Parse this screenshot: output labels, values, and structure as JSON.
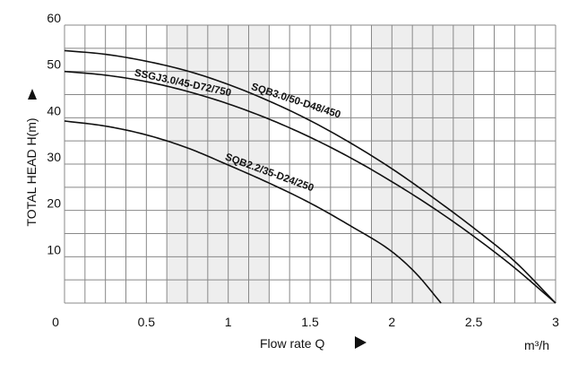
{
  "chart_data": {
    "type": "line",
    "title": "",
    "xlabel": "Flow rate Q",
    "xunit": "m³/h",
    "ylabel": "TOTAL HEAD H(m)",
    "xlim": [
      0,
      3
    ],
    "ylim": [
      0,
      60
    ],
    "x_ticks": [
      {
        "value": 0,
        "label": "0"
      },
      {
        "value": 0.5,
        "label": "0.5"
      },
      {
        "value": 1,
        "label": "1"
      },
      {
        "value": 1.5,
        "label": "1.5"
      },
      {
        "value": 2,
        "label": "2"
      },
      {
        "value": 2.5,
        "label": "2.5"
      },
      {
        "value": 3,
        "label": "3"
      }
    ],
    "y_ticks": [
      {
        "value": 10,
        "label": "10"
      },
      {
        "value": 20,
        "label": "20"
      },
      {
        "value": 30,
        "label": "30"
      },
      {
        "value": 40,
        "label": "40"
      },
      {
        "value": 50,
        "label": "50"
      },
      {
        "value": 60,
        "label": "60"
      }
    ],
    "grid": true,
    "grid_step_x": 0.125,
    "grid_step_y": 5,
    "shaded_ranges": [
      {
        "x_from": 0.625,
        "x_to": 1.25
      },
      {
        "x_from": 1.875,
        "x_to": 2.5
      }
    ],
    "colors": {
      "line": "#111111",
      "grid": "#888888",
      "shade": "#eeeeee",
      "background": "#ffffff"
    },
    "series": [
      {
        "name": "SQB3.0/50-D48/450",
        "label_at": 1.13,
        "label_angle": 18,
        "points": [
          [
            0,
            54.5
          ],
          [
            0.25,
            53.7
          ],
          [
            0.5,
            52.2
          ],
          [
            0.75,
            50.1
          ],
          [
            1.0,
            47.2
          ],
          [
            1.25,
            43.6
          ],
          [
            1.5,
            39.4
          ],
          [
            1.75,
            34.5
          ],
          [
            2.0,
            29.0
          ],
          [
            2.25,
            22.8
          ],
          [
            2.5,
            16.2
          ],
          [
            2.75,
            9.0
          ],
          [
            3.0,
            0
          ]
        ]
      },
      {
        "name": "SSGJ3.0/45-D72/750",
        "label_at": 0.42,
        "label_angle": 12,
        "points": [
          [
            0,
            50.0
          ],
          [
            0.25,
            49.2
          ],
          [
            0.5,
            47.8
          ],
          [
            0.75,
            45.7
          ],
          [
            1.0,
            43.0
          ],
          [
            1.25,
            39.7
          ],
          [
            1.5,
            35.8
          ],
          [
            1.75,
            31.3
          ],
          [
            2.0,
            26.2
          ],
          [
            2.25,
            20.6
          ],
          [
            2.5,
            14.4
          ],
          [
            2.75,
            7.6
          ],
          [
            3.0,
            0
          ]
        ]
      },
      {
        "name": "SQB2.2/35-D24/250",
        "label_at": 0.97,
        "label_angle": 20,
        "points": [
          [
            0,
            39.3
          ],
          [
            0.25,
            38.2
          ],
          [
            0.5,
            36.3
          ],
          [
            0.75,
            33.5
          ],
          [
            1.0,
            29.8
          ],
          [
            1.25,
            25.9
          ],
          [
            1.5,
            21.6
          ],
          [
            1.75,
            16.6
          ],
          [
            2.0,
            11.1
          ],
          [
            2.15,
            6.3
          ],
          [
            2.3,
            0
          ]
        ]
      }
    ]
  }
}
